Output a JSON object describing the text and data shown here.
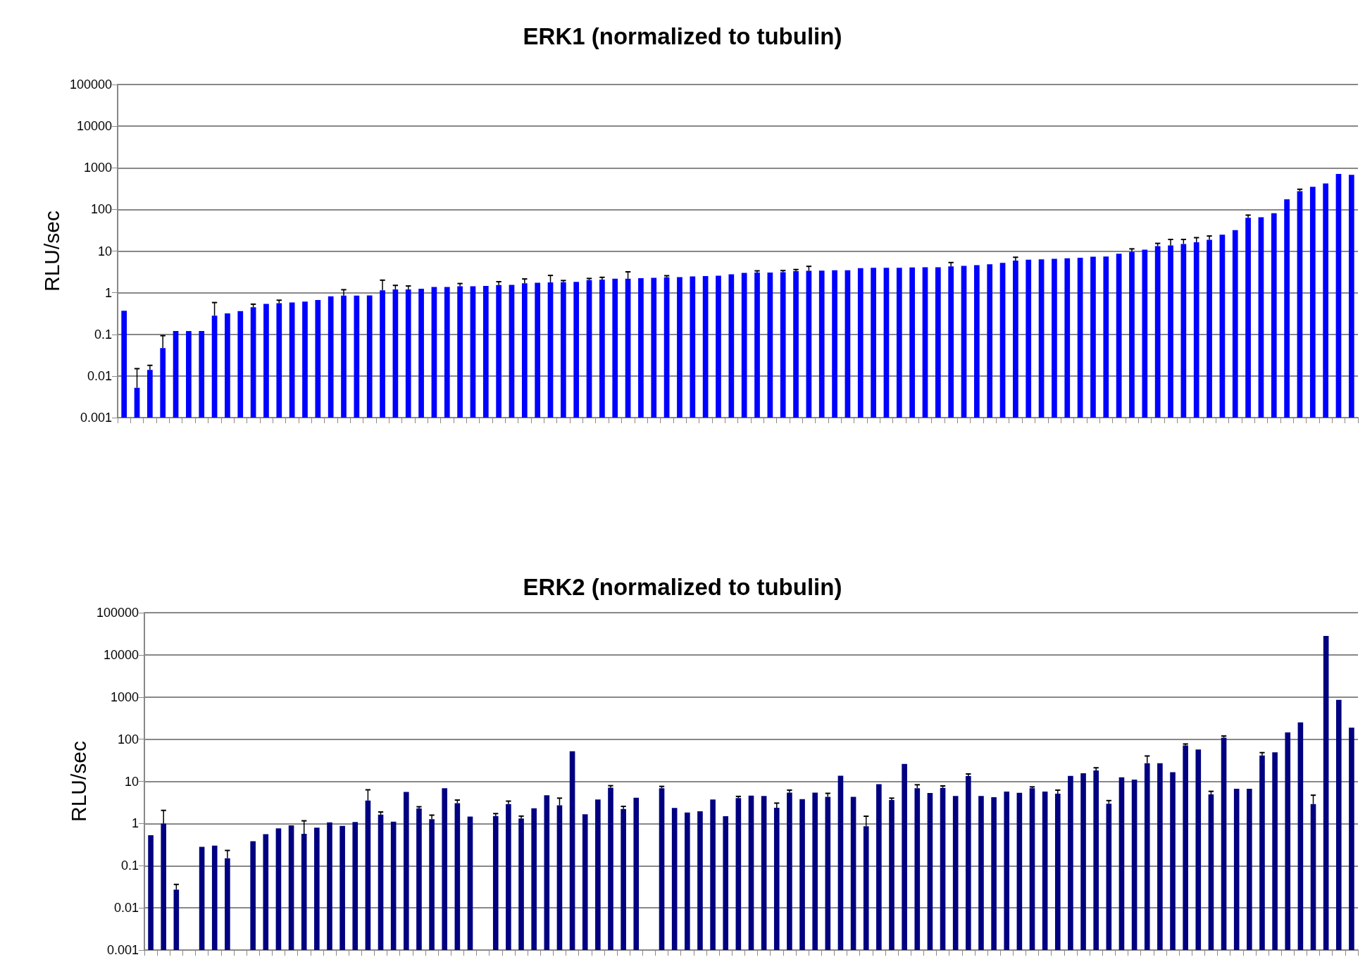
{
  "chart_data": [
    {
      "type": "bar",
      "title": "ERK1 (normalized to tubulin)",
      "ylabel": "RLU/sec",
      "log": "y",
      "grid": "y",
      "tick_labels": "y",
      "categories": [
        null,
        null,
        null,
        null,
        null,
        null,
        null,
        null,
        null,
        null,
        null,
        null,
        null,
        null,
        null,
        null,
        null,
        null,
        null,
        null,
        null,
        null,
        null,
        null,
        null,
        null,
        null,
        null,
        null,
        null,
        null,
        null,
        null,
        null,
        null,
        null,
        null,
        null,
        null,
        null,
        null,
        null,
        null,
        null,
        null,
        null,
        null,
        null,
        null,
        null,
        null,
        null,
        null,
        null,
        null,
        null,
        null,
        null,
        null,
        null,
        null,
        null,
        null,
        null,
        null,
        null,
        null,
        null,
        null,
        null,
        null,
        null,
        null,
        null,
        null,
        null,
        null,
        null,
        null,
        null,
        null,
        null,
        null,
        null,
        null,
        null,
        null,
        null,
        null,
        null,
        null,
        null,
        null,
        null,
        null,
        null
      ],
      "ylim": [
        0.001,
        100000
      ],
      "yticks": [
        0.001,
        0.01,
        0.1,
        1,
        10,
        100,
        1000,
        10000,
        100000
      ],
      "series": [
        {
          "color": "#0000ff",
          "values": [
            0.37,
            0.0052,
            0.014,
            0.047,
            0.12,
            0.12,
            0.12,
            0.28,
            0.32,
            0.36,
            0.45,
            0.54,
            0.56,
            0.58,
            0.61,
            0.67,
            0.82,
            0.85,
            0.85,
            0.86,
            1.14,
            1.2,
            1.2,
            1.25,
            1.37,
            1.37,
            1.43,
            1.43,
            1.45,
            1.52,
            1.54,
            1.69,
            1.74,
            1.76,
            1.79,
            1.82,
            2.0,
            2.07,
            2.17,
            2.17,
            2.24,
            2.27,
            2.34,
            2.37,
            2.45,
            2.52,
            2.56,
            2.76,
            3.0,
            3.06,
            3.06,
            3.1,
            3.3,
            3.35,
            3.4,
            3.45,
            3.45,
            3.9,
            3.95,
            3.95,
            3.95,
            4.06,
            4.1,
            4.1,
            4.3,
            4.4,
            4.6,
            4.8,
            5.2,
            5.9,
            6.2,
            6.3,
            6.5,
            6.7,
            6.9,
            7.3,
            7.4,
            8.6,
            9.5,
            10.8,
            13.1,
            13.7,
            14.8,
            16.3,
            18.6,
            24.8,
            32,
            63,
            65,
            81,
            175,
            275,
            350,
            420,
            710,
            680
          ],
          "errors": [
            null,
            0.0098,
            0.004,
            0.046,
            null,
            null,
            null,
            0.3,
            null,
            null,
            0.08,
            null,
            0.1,
            null,
            null,
            null,
            null,
            0.33,
            null,
            null,
            0.86,
            0.3,
            0.25,
            null,
            null,
            null,
            0.23,
            null,
            null,
            0.32,
            null,
            0.45,
            null,
            0.84,
            0.17,
            null,
            0.2,
            0.27,
            null,
            1.0,
            null,
            null,
            0.22,
            null,
            null,
            null,
            null,
            null,
            null,
            0.29,
            null,
            0.3,
            0.3,
            0.95,
            null,
            null,
            null,
            null,
            null,
            null,
            null,
            null,
            null,
            null,
            1.0,
            null,
            null,
            null,
            null,
            1.2,
            null,
            null,
            null,
            null,
            null,
            null,
            null,
            null,
            1.8,
            null,
            2.2,
            5.3,
            4.2,
            4.7,
            4.4,
            null,
            null,
            10,
            null,
            null,
            null,
            30,
            null,
            null,
            null,
            null
          ]
        }
      ]
    },
    {
      "type": "bar",
      "title": "ERK2 (normalized to tubulin)",
      "ylabel": "RLU/sec",
      "log": "y",
      "grid": "y",
      "tick_labels": "y",
      "categories": [
        null,
        null,
        null,
        null,
        null,
        null,
        null,
        null,
        null,
        null,
        null,
        null,
        null,
        null,
        null,
        null,
        null,
        null,
        null,
        null,
        null,
        null,
        null,
        null,
        null,
        null,
        null,
        null,
        null,
        null,
        null,
        null,
        null,
        null,
        null,
        null,
        null,
        null,
        null,
        null,
        null,
        null,
        null,
        null,
        null,
        null,
        null,
        null,
        null,
        null,
        null,
        null,
        null,
        null,
        null,
        null,
        null,
        null,
        null,
        null,
        null,
        null,
        null,
        null,
        null,
        null,
        null,
        null,
        null,
        null,
        null,
        null,
        null,
        null,
        null,
        null,
        null,
        null,
        null,
        null,
        null,
        null,
        null,
        null,
        null,
        null,
        null,
        null,
        null,
        null,
        null,
        null,
        null,
        null,
        null
      ],
      "ylim": [
        0.001,
        100000
      ],
      "yticks": [
        0.001,
        0.01,
        0.1,
        1,
        10,
        100,
        1000,
        10000,
        100000
      ],
      "series": [
        {
          "color": "#000080",
          "values": [
            0.53,
            1.0,
            0.027,
            null,
            0.28,
            0.3,
            0.15,
            null,
            0.38,
            0.56,
            0.77,
            0.9,
            0.57,
            0.8,
            1.06,
            0.88,
            1.09,
            3.5,
            1.62,
            1.11,
            5.6,
            2.27,
            1.26,
            6.9,
            3.05,
            1.46,
            null,
            1.51,
            2.9,
            1.32,
            2.3,
            4.7,
            2.7,
            52,
            1.65,
            3.7,
            7.1,
            2.2,
            4.1,
            null,
            6.9,
            2.34,
            1.82,
            1.96,
            3.7,
            1.49,
            4.0,
            4.6,
            4.5,
            2.37,
            5.4,
            3.8,
            5.4,
            4.3,
            13.6,
            4.3,
            0.86,
            8.6,
            3.6,
            26,
            6.9,
            5.3,
            7.0,
            4.5,
            13.4,
            4.5,
            4.2,
            5.7,
            5.35,
            6.9,
            5.7,
            5.1,
            13.5,
            15.6,
            18.1,
            2.95,
            12.5,
            11.0,
            27,
            27,
            16.5,
            71,
            57,
            4.9,
            109,
            6.7,
            6.7,
            41,
            49,
            145,
            250,
            2.9,
            28000,
            860,
            187
          ],
          "errors": [
            null,
            1.05,
            0.009,
            null,
            null,
            null,
            0.08,
            null,
            null,
            null,
            null,
            null,
            0.59,
            null,
            null,
            null,
            null,
            2.8,
            0.26,
            null,
            null,
            0.23,
            0.32,
            null,
            0.55,
            null,
            null,
            0.21,
            0.5,
            0.18,
            null,
            null,
            1.3,
            null,
            null,
            null,
            0.8,
            0.35,
            null,
            null,
            0.7,
            null,
            null,
            null,
            null,
            null,
            0.4,
            null,
            null,
            0.68,
            0.8,
            null,
            null,
            0.9,
            null,
            null,
            0.63,
            null,
            0.4,
            null,
            1.4,
            null,
            0.8,
            null,
            1.6,
            null,
            null,
            null,
            null,
            0.5,
            null,
            1.1,
            null,
            null,
            2.9,
            0.55,
            null,
            null,
            13,
            null,
            null,
            6,
            null,
            0.9,
            10,
            null,
            null,
            7,
            null,
            null,
            null,
            1.8,
            null,
            null,
            null
          ]
        }
      ]
    }
  ]
}
